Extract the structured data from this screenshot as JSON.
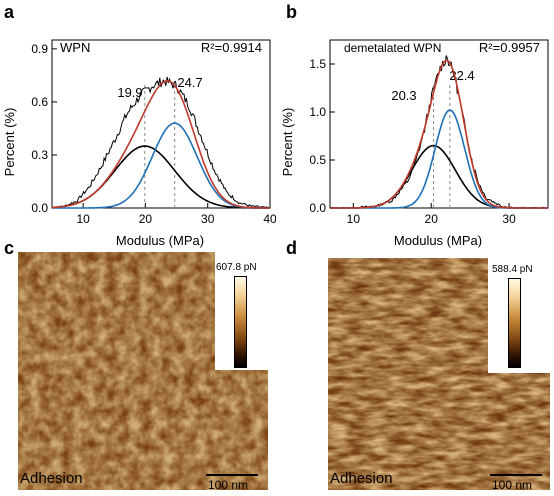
{
  "panels": {
    "a": {
      "letter": "a",
      "label": "WPN",
      "r2": "R²=0.9914",
      "peak_labels": [
        "19.9",
        "24.7"
      ],
      "xlabel": "Modulus (MPa)",
      "ylabel": "Percent (%)"
    },
    "b": {
      "letter": "b",
      "label": "demetalated WPN",
      "r2": "R²=0.9957",
      "peak_labels": [
        "20.3",
        "22.4"
      ],
      "xlabel": "Modulus (MPa)",
      "ylabel": "Percent (%)"
    },
    "c": {
      "letter": "c",
      "caption": "Adhesion",
      "scalebar": "100 nm",
      "colorbar_max": "607.8 pN"
    },
    "d": {
      "letter": "d",
      "caption": "Adhesion",
      "scalebar": "100 nm",
      "colorbar_max": "588.4 pN"
    }
  },
  "colors": {
    "hist": "#000000",
    "fit_total": "#c0392b",
    "peak1": "#000000",
    "peak2": "#1f6fb5",
    "guide": "#888888",
    "afm_dark": "#3a1a04",
    "afm_light": "#f6d8a0"
  },
  "chart_data": [
    {
      "type": "line",
      "panel": "a",
      "xlabel": "Modulus (MPa)",
      "ylabel": "Percent (%)",
      "xlim": [
        5,
        40
      ],
      "ylim": [
        0,
        0.95
      ],
      "xticks": [
        10,
        20,
        30,
        40
      ],
      "yticks": [
        0.0,
        0.3,
        0.6,
        0.9
      ],
      "annotations": [
        "WPN",
        "R²=0.9914",
        "19.9",
        "24.7"
      ],
      "components": [
        {
          "center": 19.9,
          "amplitude": 0.35,
          "sigma": 4.8
        },
        {
          "center": 24.7,
          "amplitude": 0.48,
          "sigma": 3.6
        }
      ],
      "series": [
        {
          "kind": "histogram",
          "x": [
            5,
            7,
            9,
            11,
            13,
            15,
            17,
            19,
            21,
            23,
            25,
            27,
            29,
            31,
            33,
            35,
            37,
            40
          ],
          "y": [
            0.0,
            0.01,
            0.04,
            0.12,
            0.24,
            0.38,
            0.53,
            0.63,
            0.69,
            0.72,
            0.69,
            0.58,
            0.4,
            0.22,
            0.09,
            0.03,
            0.01,
            0.0
          ]
        }
      ]
    },
    {
      "type": "line",
      "panel": "b",
      "xlabel": "Modulus (MPa)",
      "ylabel": "Percent (%)",
      "xlim": [
        7,
        35
      ],
      "ylim": [
        0,
        1.75
      ],
      "xticks": [
        10,
        20,
        30
      ],
      "yticks": [
        0.0,
        0.5,
        1.0,
        1.5
      ],
      "annotations": [
        "demetalated WPN",
        "R²=0.9957",
        "20.3",
        "22.4"
      ],
      "components": [
        {
          "center": 20.3,
          "amplitude": 0.65,
          "sigma": 2.8
        },
        {
          "center": 22.4,
          "amplitude": 1.02,
          "sigma": 1.9
        }
      ],
      "series": [
        {
          "kind": "histogram",
          "x": [
            7,
            10,
            13,
            15,
            17,
            18,
            19,
            20,
            21,
            22,
            23,
            24,
            25,
            26,
            27,
            29,
            31,
            35
          ],
          "y": [
            0.0,
            0.0,
            0.02,
            0.08,
            0.28,
            0.48,
            0.77,
            1.14,
            1.43,
            1.58,
            1.38,
            0.98,
            0.57,
            0.28,
            0.11,
            0.02,
            0.0,
            0.0
          ]
        }
      ]
    }
  ]
}
